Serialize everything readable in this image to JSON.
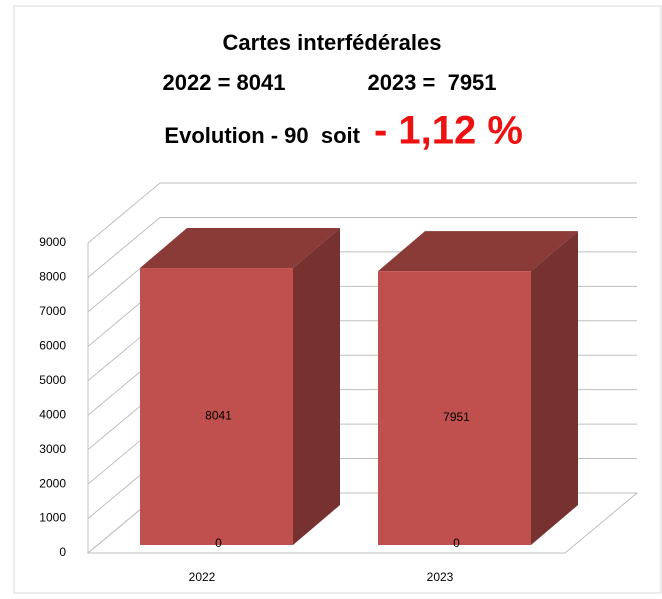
{
  "chart_data": {
    "type": "bar3d",
    "title": "Cartes interfédérales",
    "subtitle": [
      "2022 = 8041",
      "2023 =  7951"
    ],
    "annotation": "Evolution - 90  soit",
    "annotation_highlight": "- 1,12 %",
    "categories": [
      "2022",
      "2023"
    ],
    "series": [
      {
        "values": [
          8041,
          7951
        ],
        "color": "#c0504d"
      },
      {
        "values": [
          0,
          0
        ],
        "color": "#c0504d"
      }
    ],
    "ylim": [
      0,
      9000
    ],
    "yticks": [
      0,
      1000,
      2000,
      3000,
      4000,
      5000,
      6000,
      7000,
      8000,
      9000
    ],
    "grid": true
  }
}
